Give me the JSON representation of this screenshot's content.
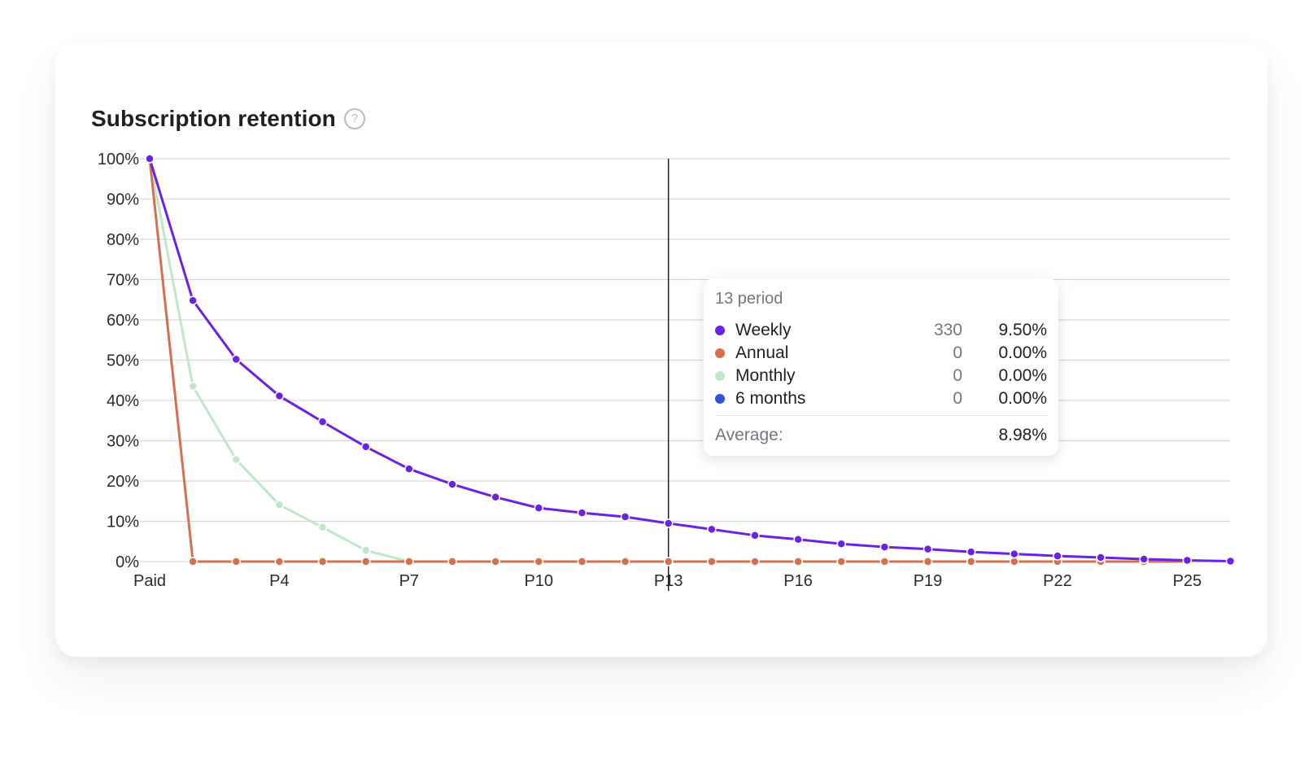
{
  "card": {
    "title": "Subscription retention",
    "help_icon": "question-circle-icon"
  },
  "chart_data": {
    "type": "line",
    "title": "Subscription retention",
    "xlabel": "",
    "ylabel": "",
    "x": [
      "Paid",
      "P2",
      "P3",
      "P4",
      "P5",
      "P6",
      "P7",
      "P8",
      "P9",
      "P10",
      "P11",
      "P12",
      "P13",
      "P14",
      "P15",
      "P16",
      "P17",
      "P18",
      "P19",
      "P20",
      "P21",
      "P22",
      "P23",
      "P24",
      "P25",
      "P26"
    ],
    "x_tick_labels": [
      "Paid",
      "P4",
      "P7",
      "P10",
      "P13",
      "P16",
      "P19",
      "P22",
      "P25"
    ],
    "y_tick_labels": [
      "0%",
      "10%",
      "20%",
      "30%",
      "40%",
      "50%",
      "60%",
      "70%",
      "80%",
      "90%",
      "100%"
    ],
    "ylim": [
      0,
      100
    ],
    "grid": true,
    "series": [
      {
        "name": "Monthly",
        "color": "#bfe8cb",
        "values": [
          100,
          43.5,
          25.3,
          14.1,
          8.5,
          2.8,
          0,
          null,
          null,
          null,
          null,
          null,
          null,
          null,
          null,
          null,
          null,
          null,
          null,
          null,
          null,
          null,
          null,
          null,
          null,
          null
        ]
      },
      {
        "name": "Annual",
        "color": "#d4704e",
        "values": [
          100,
          0,
          0,
          0,
          0,
          0,
          0,
          0,
          0,
          0,
          0,
          0,
          0,
          0,
          0,
          0,
          0,
          0,
          0,
          0,
          0,
          0,
          0,
          0,
          0,
          null
        ]
      },
      {
        "name": "Weekly",
        "color": "#6a22e6",
        "values": [
          100,
          64.8,
          50.2,
          41.1,
          34.7,
          28.5,
          23.0,
          19.2,
          16.0,
          13.3,
          12.1,
          11.1,
          9.5,
          8.0,
          6.5,
          5.5,
          4.4,
          3.6,
          3.1,
          2.4,
          1.9,
          1.4,
          1.0,
          0.6,
          0.3,
          0.1
        ]
      }
    ],
    "crosshair_x": "P13",
    "tooltip": {
      "header": "13 period",
      "rows": [
        {
          "name": "Weekly",
          "color": "#6a22e6",
          "count": "330",
          "pct": "9.50%"
        },
        {
          "name": "Annual",
          "color": "#d4704e",
          "count": "0",
          "pct": "0.00%"
        },
        {
          "name": "Monthly",
          "color": "#bfe8cb",
          "count": "0",
          "pct": "0.00%"
        },
        {
          "name": "6 months",
          "color": "#3352d6",
          "count": "0",
          "pct": "0.00%"
        }
      ],
      "average_label": "Average:",
      "average_value": "8.98%"
    }
  }
}
